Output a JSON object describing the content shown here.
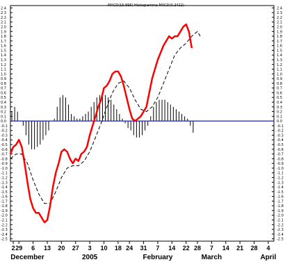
{
  "chart_data": {
    "type": "line",
    "title": "MACD(15.695) Histogramma MACD(0.2412)",
    "ylim": [
      -2.5,
      2.4
    ],
    "y_ticks": [
      2.4,
      2.3,
      2.2,
      2.1,
      2.0,
      1.9,
      1.8,
      1.7,
      1.6,
      1.5,
      1.4,
      1.3,
      1.2,
      1.1,
      1.0,
      0.9,
      0.8,
      0.7,
      0.6,
      0.5,
      0.4,
      0.3,
      0.2,
      0.1,
      0.0,
      -0.1,
      -0.2,
      -0.3,
      -0.4,
      -0.5,
      -0.6,
      -0.7,
      -0.8,
      -0.9,
      -1.0,
      -1.1,
      -1.2,
      -1.3,
      -1.4,
      -1.5,
      -1.6,
      -1.7,
      -1.8,
      -1.9,
      -2.0,
      -2.1,
      -2.2,
      -2.3,
      -2.4,
      -2.5
    ],
    "y_tick_labels": [
      "2.4",
      "2.3",
      "2.2",
      "2.1",
      "2.0",
      "1.9",
      "1.8",
      "1.7",
      "1.6",
      "1.5",
      "1.4",
      "1.3",
      "1.2",
      "1.1",
      "1.0",
      "0.9",
      "0.8",
      "0.7",
      "0.6",
      "0.5",
      "0.4",
      "0.3",
      "0.2",
      "0.1",
      "0.0",
      "-0.1",
      "-0.2",
      "-0.3",
      "-0.4",
      "-0.5",
      "-0.6",
      "-0.7",
      "-0.8",
      "-0.9",
      "-1.0",
      "-1.1",
      "-1.2",
      "-1.3",
      "-1.4",
      "-1.5",
      "-1.6",
      "-1.7",
      "-1.8",
      "-1.9",
      "-2.0",
      "-2.1",
      "-2.2",
      "-2.3",
      "-2.4",
      "-2.5"
    ],
    "x_labels": [
      {
        "label": "2",
        "t": 1
      },
      {
        "label": "29",
        "t": 3
      },
      {
        "label": "6",
        "t": 8
      },
      {
        "label": "13",
        "t": 13
      },
      {
        "label": "20",
        "t": 18
      },
      {
        "label": "27",
        "t": 23
      },
      {
        "label": "3",
        "t": 28
      },
      {
        "label": "10",
        "t": 33
      },
      {
        "label": "18",
        "t": 38
      },
      {
        "label": "24",
        "t": 42
      },
      {
        "label": "31",
        "t": 47
      },
      {
        "label": "7",
        "t": 52
      },
      {
        "label": "14",
        "t": 57
      },
      {
        "label": "22",
        "t": 62
      },
      {
        "label": "28",
        "t": 66
      },
      {
        "label": "7",
        "t": 71
      },
      {
        "label": "14",
        "t": 76
      },
      {
        "label": "21",
        "t": 81
      },
      {
        "label": "28",
        "t": 86
      },
      {
        "label": "4",
        "t": 91
      }
    ],
    "months": [
      {
        "label": "December",
        "t": 6
      },
      {
        "label": "2005",
        "t": 28
      },
      {
        "label": "February",
        "t": 52
      },
      {
        "label": "March",
        "t": 71
      },
      {
        "label": "April",
        "t": 91
      }
    ],
    "x_range": [
      0,
      93
    ],
    "series": [
      {
        "type": "line",
        "color": "#ff0000",
        "values": [
          [
            0,
            -0.7
          ],
          [
            1,
            -0.55
          ],
          [
            2,
            -0.5
          ],
          [
            3,
            -0.4
          ],
          [
            4,
            -0.55
          ],
          [
            5,
            -0.9
          ],
          [
            6,
            -1.3
          ],
          [
            7,
            -1.65
          ],
          [
            8,
            -1.85
          ],
          [
            9,
            -1.95
          ],
          [
            10,
            -1.95
          ],
          [
            11,
            -2.05
          ],
          [
            12,
            -2.15
          ],
          [
            13,
            -2.1
          ],
          [
            14,
            -1.8
          ],
          [
            15,
            -1.4
          ],
          [
            16,
            -1.1
          ],
          [
            17,
            -0.9
          ],
          [
            18,
            -0.65
          ],
          [
            19,
            -0.6
          ],
          [
            20,
            -0.65
          ],
          [
            21,
            -0.8
          ],
          [
            22,
            -0.9
          ],
          [
            23,
            -0.8
          ],
          [
            24,
            -0.85
          ],
          [
            25,
            -0.7
          ],
          [
            26,
            -0.65
          ],
          [
            27,
            -0.55
          ],
          [
            28,
            -0.3
          ],
          [
            29,
            -0.1
          ],
          [
            30,
            0.1
          ],
          [
            31,
            0.3
          ],
          [
            32,
            0.45
          ],
          [
            33,
            0.7
          ],
          [
            34,
            0.75
          ],
          [
            35,
            0.85
          ],
          [
            36,
            1.0
          ],
          [
            37,
            1.05
          ],
          [
            38,
            1.05
          ],
          [
            39,
            0.95
          ],
          [
            40,
            0.75
          ],
          [
            41,
            0.5
          ],
          [
            42,
            0.25
          ],
          [
            43,
            0.05
          ],
          [
            44,
            0.0
          ],
          [
            45,
            0.05
          ],
          [
            46,
            0.1
          ],
          [
            47,
            0.2
          ],
          [
            48,
            0.3
          ],
          [
            49,
            0.6
          ],
          [
            50,
            0.9
          ],
          [
            51,
            1.1
          ],
          [
            52,
            1.3
          ],
          [
            53,
            1.45
          ],
          [
            54,
            1.6
          ],
          [
            55,
            1.7
          ],
          [
            56,
            1.8
          ],
          [
            57,
            1.75
          ],
          [
            58,
            1.8
          ],
          [
            59,
            1.8
          ],
          [
            60,
            1.9
          ],
          [
            61,
            2.0
          ],
          [
            62,
            2.05
          ],
          [
            63,
            1.9
          ],
          [
            64,
            1.55
          ]
        ]
      },
      {
        "type": "line",
        "color": "#000000",
        "dashed": true,
        "values": [
          [
            0,
            -0.8
          ],
          [
            2,
            -0.7
          ],
          [
            4,
            -0.7
          ],
          [
            6,
            -0.9
          ],
          [
            8,
            -1.25
          ],
          [
            10,
            -1.55
          ],
          [
            12,
            -1.75
          ],
          [
            14,
            -1.75
          ],
          [
            16,
            -1.5
          ],
          [
            18,
            -1.2
          ],
          [
            20,
            -1.0
          ],
          [
            22,
            -0.95
          ],
          [
            24,
            -0.95
          ],
          [
            26,
            -0.85
          ],
          [
            28,
            -0.65
          ],
          [
            30,
            -0.35
          ],
          [
            32,
            -0.05
          ],
          [
            34,
            0.3
          ],
          [
            36,
            0.6
          ],
          [
            38,
            0.8
          ],
          [
            40,
            0.85
          ],
          [
            42,
            0.7
          ],
          [
            44,
            0.45
          ],
          [
            46,
            0.25
          ],
          [
            48,
            0.2
          ],
          [
            50,
            0.3
          ],
          [
            52,
            0.5
          ],
          [
            54,
            0.8
          ],
          [
            56,
            1.1
          ],
          [
            58,
            1.4
          ],
          [
            60,
            1.55
          ],
          [
            62,
            1.65
          ],
          [
            64,
            1.8
          ],
          [
            66,
            1.9
          ],
          [
            67,
            1.8
          ]
        ]
      }
    ],
    "histogram": [
      0.2,
      0.3,
      0.2,
      0.0,
      -0.1,
      -0.3,
      -0.5,
      -0.6,
      -0.6,
      -0.55,
      -0.5,
      -0.4,
      -0.3,
      -0.2,
      0.0,
      0.05,
      0.3,
      0.5,
      0.55,
      0.5,
      0.35,
      0.15,
      0.1,
      0.05,
      0.05,
      0.1,
      0.15,
      0.2,
      0.3,
      0.4,
      0.5,
      0.55,
      0.6,
      0.55,
      0.5,
      0.45,
      0.35,
      0.25,
      0.15,
      0.05,
      -0.05,
      -0.15,
      -0.2,
      -0.3,
      -0.35,
      -0.35,
      -0.3,
      -0.2,
      -0.1,
      0.1,
      0.3,
      0.4,
      0.45,
      0.45,
      0.45,
      0.4,
      0.35,
      0.3,
      0.25,
      0.2,
      0.15,
      0.1,
      0.05,
      -0.1,
      -0.25
    ],
    "zero_line_color": "#1f1fb5"
  }
}
